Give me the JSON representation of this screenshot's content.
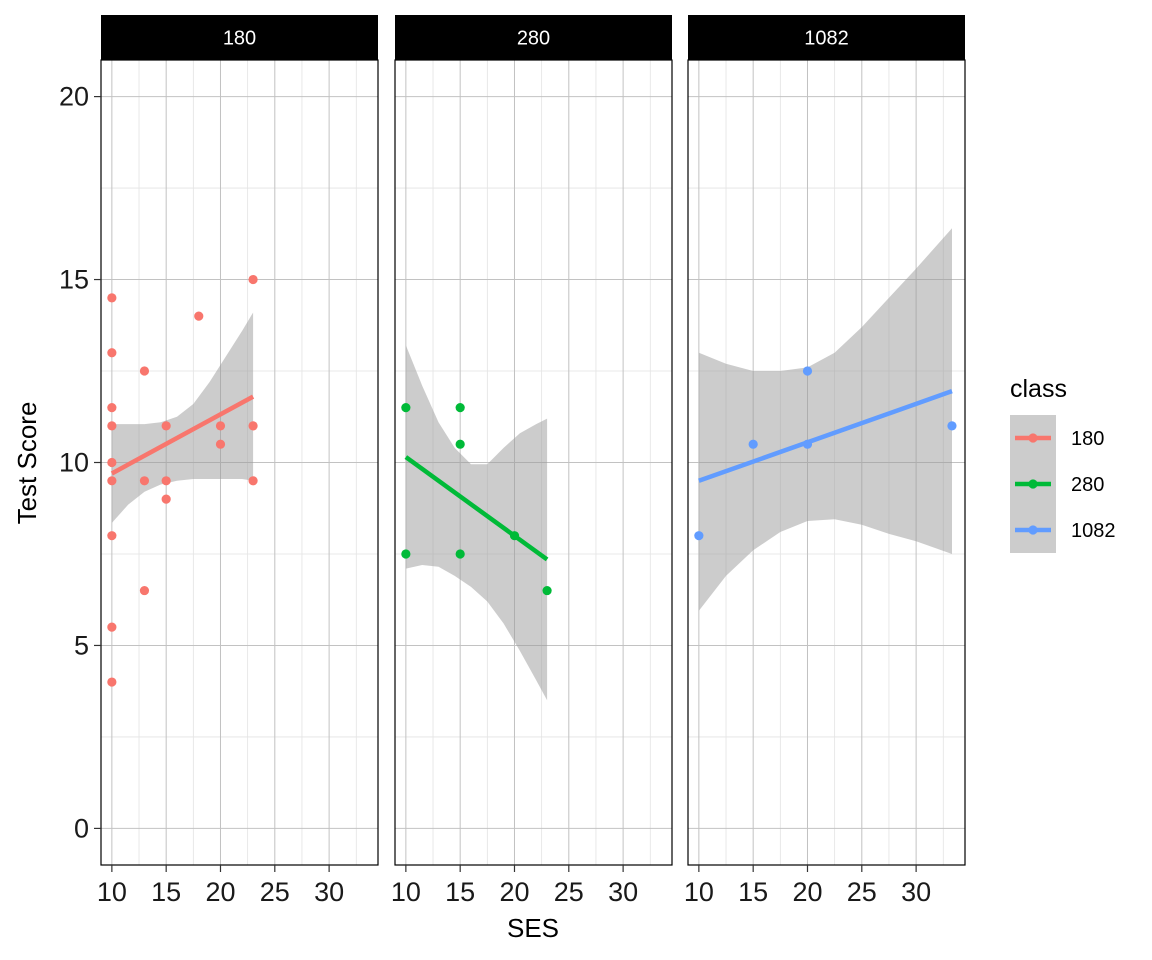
{
  "chart_data": {
    "type": "scatter",
    "xlabel": "SES",
    "ylabel": "Test Score",
    "xlim": [
      9,
      34.5
    ],
    "ylim": [
      -1,
      21
    ],
    "x_ticks": [
      10,
      15,
      20,
      25,
      30
    ],
    "y_ticks": [
      0,
      5,
      10,
      15,
      20
    ],
    "x_tick_labels": [
      "10",
      "15",
      "20",
      "25",
      "30"
    ],
    "y_tick_labels": [
      "0",
      "5",
      "10",
      "15",
      "20"
    ],
    "grid": true,
    "facet_by": "class",
    "legend": {
      "title": "class",
      "placement": "right",
      "entries": [
        {
          "label": "180",
          "color": "#F8766D"
        },
        {
          "label": "280",
          "color": "#00BA38"
        },
        {
          "label": "1082",
          "color": "#619CFF"
        }
      ]
    },
    "panels": [
      {
        "strip": "180",
        "color": "#F8766D",
        "points": [
          {
            "x": 10,
            "y": 14.5
          },
          {
            "x": 10,
            "y": 13
          },
          {
            "x": 10,
            "y": 11.5
          },
          {
            "x": 10,
            "y": 11
          },
          {
            "x": 10,
            "y": 10
          },
          {
            "x": 10,
            "y": 9.5
          },
          {
            "x": 10,
            "y": 8
          },
          {
            "x": 10,
            "y": 5.5
          },
          {
            "x": 10,
            "y": 4
          },
          {
            "x": 13,
            "y": 12.5
          },
          {
            "x": 13,
            "y": 9.5
          },
          {
            "x": 13,
            "y": 6.5
          },
          {
            "x": 15,
            "y": 11
          },
          {
            "x": 15,
            "y": 9.5
          },
          {
            "x": 15,
            "y": 9
          },
          {
            "x": 18,
            "y": 14
          },
          {
            "x": 20,
            "y": 11
          },
          {
            "x": 20,
            "y": 10.5
          },
          {
            "x": 23,
            "y": 15
          },
          {
            "x": 23,
            "y": 11
          },
          {
            "x": 23,
            "y": 9.5
          }
        ],
        "fit": {
          "x": [
            10,
            23
          ],
          "y": [
            9.7,
            11.8
          ]
        },
        "band": {
          "x": [
            10,
            11.5,
            13,
            14.5,
            16,
            17.5,
            19,
            20.5,
            22,
            23
          ],
          "upper": [
            11.05,
            11.05,
            11.05,
            11.1,
            11.25,
            11.6,
            12.2,
            12.9,
            13.6,
            14.1
          ],
          "lower": [
            8.35,
            8.85,
            9.2,
            9.4,
            9.5,
            9.55,
            9.55,
            9.55,
            9.55,
            9.5
          ]
        }
      },
      {
        "strip": "280",
        "color": "#00BA38",
        "points": [
          {
            "x": 10,
            "y": 11.5
          },
          {
            "x": 10,
            "y": 7.5
          },
          {
            "x": 15,
            "y": 11.5
          },
          {
            "x": 15,
            "y": 10.5
          },
          {
            "x": 15,
            "y": 7.5
          },
          {
            "x": 20,
            "y": 8
          },
          {
            "x": 23,
            "y": 6.5
          }
        ],
        "fit": {
          "x": [
            10,
            23
          ],
          "y": [
            10.15,
            7.35
          ]
        },
        "band": {
          "x": [
            10,
            11.5,
            13,
            14.5,
            16,
            17.5,
            19,
            20.5,
            22,
            23
          ],
          "upper": [
            13.2,
            12.1,
            11.1,
            10.4,
            9.95,
            9.95,
            10.4,
            10.8,
            11.05,
            11.2
          ],
          "lower": [
            7.1,
            7.2,
            7.15,
            6.9,
            6.6,
            6.2,
            5.6,
            4.85,
            4.05,
            3.5
          ]
        }
      },
      {
        "strip": "1082",
        "color": "#619CFF",
        "points": [
          {
            "x": 10,
            "y": 8
          },
          {
            "x": 15,
            "y": 10.5
          },
          {
            "x": 20,
            "y": 12.5
          },
          {
            "x": 20,
            "y": 10.5
          },
          {
            "x": 33.3,
            "y": 11
          }
        ],
        "fit": {
          "x": [
            10,
            33.3
          ],
          "y": [
            9.5,
            11.95
          ]
        },
        "band": {
          "x": [
            10,
            12.5,
            15,
            17.5,
            20,
            22.5,
            25,
            27.5,
            30,
            33.3
          ],
          "upper": [
            13.0,
            12.7,
            12.5,
            12.5,
            12.6,
            13.0,
            13.7,
            14.5,
            15.3,
            16.4
          ],
          "lower": [
            5.95,
            6.9,
            7.6,
            8.1,
            8.4,
            8.45,
            8.3,
            8.05,
            7.85,
            7.5
          ]
        }
      }
    ]
  }
}
